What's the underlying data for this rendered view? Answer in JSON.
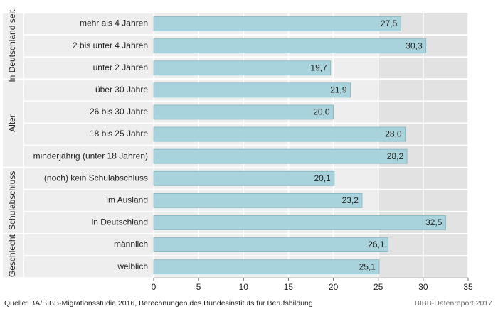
{
  "chart_data": {
    "type": "bar",
    "orientation": "horizontal",
    "categories": [
      "mehr als 4 Jahren",
      "2 bis unter 4 Jahren",
      "unter 2 Jahren",
      "über 30 Jahre",
      "26 bis 30 Jahre",
      "18 bis 25 Jahre",
      "minderjährig (unter 18 Jahren)",
      "(noch) kein Schulabschluss",
      "im Ausland",
      "in Deutschland",
      "männlich",
      "weiblich"
    ],
    "values": [
      27.5,
      30.3,
      19.7,
      21.9,
      20.0,
      28.0,
      28.2,
      20.1,
      23.2,
      32.5,
      26.1,
      25.1
    ],
    "value_labels": [
      "27,5",
      "30,3",
      "19,7",
      "21,9",
      "20,0",
      "28,0",
      "28,2",
      "20,1",
      "23,2",
      "32,5",
      "26,1",
      "25,1"
    ],
    "groups": [
      {
        "label": "In Deutschland seit",
        "count": 3
      },
      {
        "label": "Alter",
        "count": 4
      },
      {
        "label": "Schulabschluss",
        "count": 3
      },
      {
        "label": "Geschlecht",
        "count": 2
      }
    ],
    "xlim": [
      0,
      35
    ],
    "xticks": [
      "0",
      "5",
      "10",
      "15",
      "20",
      "25",
      "30",
      "35"
    ],
    "grid": true,
    "colors": {
      "bar": "#a9d3dc",
      "bar_stroke": "#7fb5c1",
      "band": "#eeeeee",
      "band_shaded": "#e2e2e2",
      "grid": "#ffffff"
    }
  },
  "footer": {
    "source": "Quelle: BA/BIBB-Migrationsstudie 2016, Berechnungen des Bundesinstituts für Berufsbildung",
    "credit": "BIBB-Datenreport 2017"
  }
}
